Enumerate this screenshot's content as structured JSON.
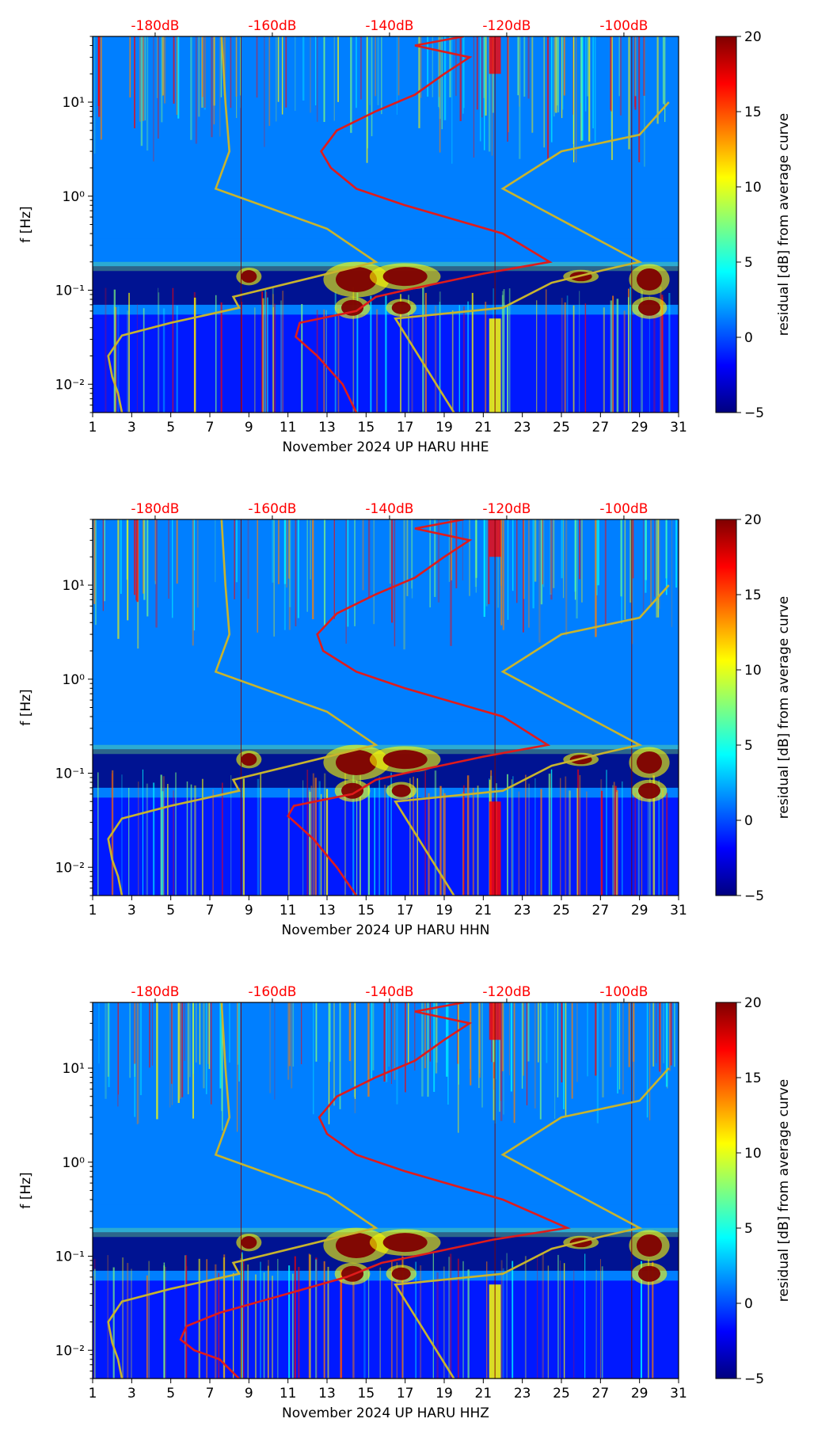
{
  "figure": {
    "colormap_colors": [
      "#00007f",
      "#0000ff",
      "#007fff",
      "#00ffff",
      "#7fff7f",
      "#ffff00",
      "#ff7f00",
      "#ff0000",
      "#7f0000"
    ],
    "reference_curve_color": "#c8b42d",
    "average_curve_color": "#e01b1b",
    "db_label_color": "#ff0000"
  },
  "chart_data": [
    {
      "type": "heatmap",
      "title": "",
      "xlabel": "November 2024 UP HARU  HHE",
      "ylabel": "f [Hz]",
      "x_range": [
        1,
        31
      ],
      "x_ticks": [
        1,
        3,
        5,
        7,
        9,
        11,
        13,
        15,
        17,
        19,
        21,
        23,
        25,
        27,
        29,
        31
      ],
      "y_scale": "log",
      "y_range": [
        0.005,
        50
      ],
      "y_ticks": [
        {
          "value": 0.01,
          "label": "10⁻²"
        },
        {
          "value": 0.1,
          "label": "10⁻¹"
        },
        {
          "value": 1,
          "label": "10⁰"
        },
        {
          "value": 10,
          "label": "10¹"
        }
      ],
      "top_axis_labels": [
        "-180dB",
        "-160dB",
        "-140dB",
        "-120dB",
        "-100dB"
      ],
      "colorbar": {
        "label": "residual [dB] from average curve",
        "range": [
          -5,
          20
        ],
        "ticks": [
          -5,
          0,
          5,
          10,
          15,
          20
        ]
      },
      "average_curve": [
        [
          14.5,
          0.005
        ],
        [
          13.8,
          0.01
        ],
        [
          12.5,
          0.02
        ],
        [
          11.4,
          0.032
        ],
        [
          11.6,
          0.045
        ],
        [
          14.5,
          0.06
        ],
        [
          15.5,
          0.085
        ],
        [
          17,
          0.1
        ],
        [
          21,
          0.15
        ],
        [
          24.4,
          0.2
        ],
        [
          22,
          0.4
        ],
        [
          17,
          0.8
        ],
        [
          14.5,
          1.2
        ],
        [
          13.2,
          2
        ],
        [
          12.7,
          3
        ],
        [
          13.5,
          5
        ],
        [
          15.5,
          8
        ],
        [
          17.5,
          12
        ],
        [
          19,
          20
        ],
        [
          20.3,
          30
        ],
        [
          17.5,
          40
        ],
        [
          20,
          50
        ]
      ],
      "reference_curves": [
        [
          [
            2.5,
            0.005
          ],
          [
            2.3,
            0.008
          ],
          [
            2,
            0.012
          ],
          [
            1.8,
            0.02
          ],
          [
            2.5,
            0.033
          ],
          [
            5,
            0.045
          ],
          [
            8.5,
            0.065
          ],
          [
            8.2,
            0.085
          ],
          [
            15.5,
            0.2
          ],
          [
            13,
            0.45
          ],
          [
            7.3,
            1.2
          ],
          [
            8,
            3
          ],
          [
            7.8,
            10
          ],
          [
            7.6,
            50
          ]
        ],
        [
          [
            19.5,
            0.005
          ],
          [
            16.5,
            0.05
          ],
          [
            22,
            0.065
          ],
          [
            24.5,
            0.12
          ],
          [
            27.5,
            0.17
          ],
          [
            29,
            0.2
          ],
          [
            22,
            1.2
          ],
          [
            25,
            3
          ],
          [
            29,
            4.5
          ],
          [
            30.5,
            10
          ]
        ]
      ]
    },
    {
      "type": "heatmap",
      "title": "",
      "xlabel": "November 2024 UP HARU  HHN",
      "ylabel": "f [Hz]",
      "x_range": [
        1,
        31
      ],
      "x_ticks": [
        1,
        3,
        5,
        7,
        9,
        11,
        13,
        15,
        17,
        19,
        21,
        23,
        25,
        27,
        29,
        31
      ],
      "y_scale": "log",
      "y_range": [
        0.005,
        50
      ],
      "y_ticks": [
        {
          "value": 0.01,
          "label": "10⁻²"
        },
        {
          "value": 0.1,
          "label": "10⁻¹"
        },
        {
          "value": 1,
          "label": "10⁰"
        },
        {
          "value": 10,
          "label": "10¹"
        }
      ],
      "top_axis_labels": [
        "-180dB",
        "-160dB",
        "-140dB",
        "-120dB",
        "-100dB"
      ],
      "colorbar": {
        "label": "residual [dB] from average curve",
        "range": [
          -5,
          20
        ],
        "ticks": [
          -5,
          0,
          5,
          10,
          15,
          20
        ]
      },
      "average_curve": [
        [
          14.5,
          0.005
        ],
        [
          13.5,
          0.01
        ],
        [
          12.3,
          0.02
        ],
        [
          11,
          0.035
        ],
        [
          11.3,
          0.045
        ],
        [
          14.3,
          0.06
        ],
        [
          15.5,
          0.085
        ],
        [
          17,
          0.1
        ],
        [
          21,
          0.15
        ],
        [
          24.3,
          0.2
        ],
        [
          22,
          0.4
        ],
        [
          17,
          0.8
        ],
        [
          14.5,
          1.2
        ],
        [
          12.8,
          2
        ],
        [
          12.5,
          3
        ],
        [
          13.5,
          5
        ],
        [
          15.5,
          8
        ],
        [
          17.5,
          12
        ],
        [
          19,
          20
        ],
        [
          20.3,
          30
        ],
        [
          17.5,
          40
        ],
        [
          20,
          50
        ]
      ],
      "reference_curves": [
        [
          [
            2.5,
            0.005
          ],
          [
            2.3,
            0.008
          ],
          [
            2,
            0.012
          ],
          [
            1.8,
            0.02
          ],
          [
            2.5,
            0.033
          ],
          [
            5,
            0.045
          ],
          [
            8.5,
            0.065
          ],
          [
            8.2,
            0.085
          ],
          [
            15.5,
            0.2
          ],
          [
            13,
            0.45
          ],
          [
            7.3,
            1.2
          ],
          [
            8,
            3
          ],
          [
            7.8,
            10
          ],
          [
            7.6,
            50
          ]
        ],
        [
          [
            19.5,
            0.005
          ],
          [
            16.5,
            0.05
          ],
          [
            22,
            0.065
          ],
          [
            24.5,
            0.12
          ],
          [
            27.5,
            0.17
          ],
          [
            29,
            0.2
          ],
          [
            22,
            1.2
          ],
          [
            25,
            3
          ],
          [
            29,
            4.5
          ],
          [
            30.5,
            10
          ]
        ]
      ]
    },
    {
      "type": "heatmap",
      "title": "",
      "xlabel": "November 2024 UP HARU  HHZ",
      "ylabel": "f [Hz]",
      "x_range": [
        1,
        31
      ],
      "x_ticks": [
        1,
        3,
        5,
        7,
        9,
        11,
        13,
        15,
        17,
        19,
        21,
        23,
        25,
        27,
        29,
        31
      ],
      "y_scale": "log",
      "y_range": [
        0.005,
        50
      ],
      "y_ticks": [
        {
          "value": 0.01,
          "label": "10⁻²"
        },
        {
          "value": 0.1,
          "label": "10⁻¹"
        },
        {
          "value": 1,
          "label": "10⁰"
        },
        {
          "value": 10,
          "label": "10¹"
        }
      ],
      "top_axis_labels": [
        "-180dB",
        "-160dB",
        "-140dB",
        "-120dB",
        "-100dB"
      ],
      "colorbar": {
        "label": "residual [dB] from average curve",
        "range": [
          -5,
          20
        ],
        "ticks": [
          -5,
          0,
          5,
          10,
          15,
          20
        ]
      },
      "average_curve": [
        [
          8.5,
          0.005
        ],
        [
          7.5,
          0.008
        ],
        [
          6.2,
          0.01
        ],
        [
          5.5,
          0.013
        ],
        [
          5.8,
          0.018
        ],
        [
          7.5,
          0.025
        ],
        [
          11,
          0.04
        ],
        [
          14,
          0.06
        ],
        [
          15.8,
          0.085
        ],
        [
          17.5,
          0.1
        ],
        [
          21.5,
          0.15
        ],
        [
          25.3,
          0.2
        ],
        [
          22,
          0.4
        ],
        [
          17,
          0.8
        ],
        [
          14.5,
          1.2
        ],
        [
          13,
          2
        ],
        [
          12.6,
          3
        ],
        [
          13.5,
          5
        ],
        [
          15.5,
          8
        ],
        [
          17.5,
          12
        ],
        [
          19,
          20
        ],
        [
          20.3,
          30
        ],
        [
          17.5,
          40
        ],
        [
          20,
          50
        ]
      ],
      "reference_curves": [
        [
          [
            2.5,
            0.005
          ],
          [
            2.3,
            0.008
          ],
          [
            2,
            0.012
          ],
          [
            1.8,
            0.02
          ],
          [
            2.5,
            0.033
          ],
          [
            5,
            0.045
          ],
          [
            8.5,
            0.065
          ],
          [
            8.2,
            0.085
          ],
          [
            15.5,
            0.2
          ],
          [
            13,
            0.45
          ],
          [
            7.3,
            1.2
          ],
          [
            8,
            3
          ],
          [
            7.8,
            10
          ],
          [
            7.6,
            50
          ]
        ],
        [
          [
            19.5,
            0.005
          ],
          [
            16.5,
            0.05
          ],
          [
            22,
            0.065
          ],
          [
            24.5,
            0.12
          ],
          [
            27.5,
            0.17
          ],
          [
            29,
            0.2
          ],
          [
            22,
            1.2
          ],
          [
            25,
            3
          ],
          [
            29,
            4.5
          ],
          [
            30.5,
            10
          ]
        ]
      ]
    }
  ]
}
